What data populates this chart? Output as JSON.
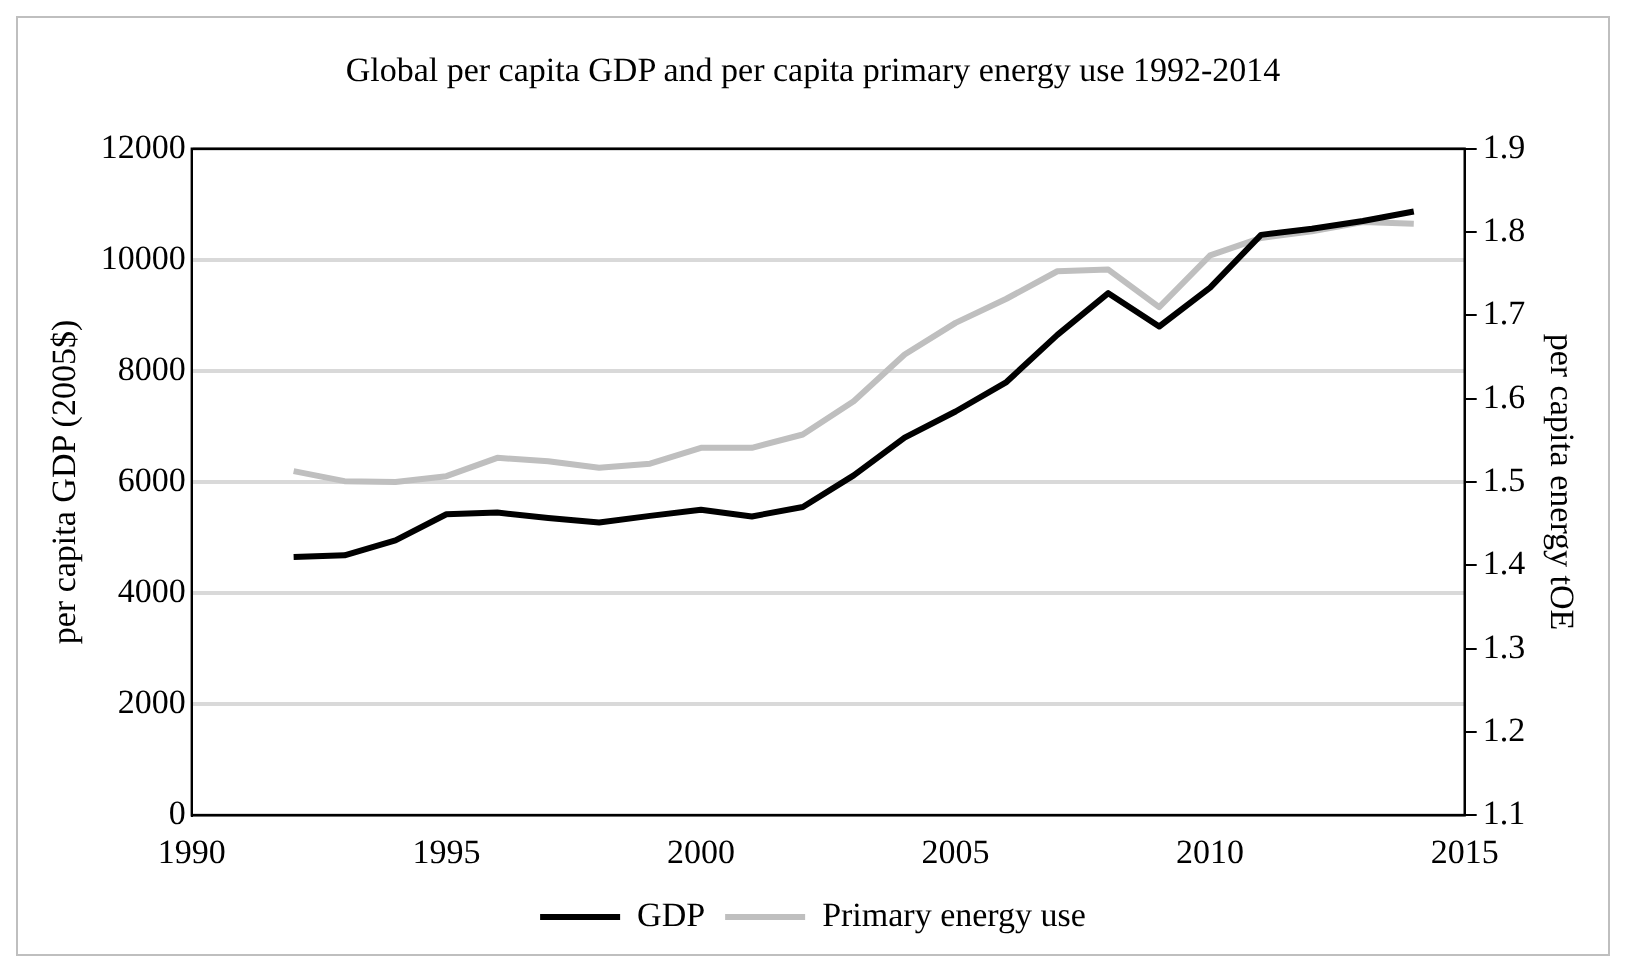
{
  "chart_data": {
    "type": "line",
    "title": "Global per capita GDP and per capita primary energy use 1992-2014",
    "ylabel": "per capita GDP (2005$)",
    "y2label": "per capita energy tOE",
    "x": [
      1992,
      1993,
      1994,
      1995,
      1996,
      1997,
      1998,
      1999,
      2000,
      2001,
      2002,
      2003,
      2004,
      2005,
      2006,
      2007,
      2008,
      2009,
      2010,
      2011,
      2012,
      2013,
      2014
    ],
    "series": [
      {
        "name": "GDP",
        "color": "#000000",
        "values": [
          4650,
          4680,
          4950,
          5420,
          5450,
          5350,
          5270,
          5390,
          5500,
          5380,
          5550,
          6120,
          6800,
          7270,
          7800,
          8650,
          9400,
          8800,
          9500,
          10450,
          10560,
          10700,
          10870
        ]
      },
      {
        "name": "Primary energy use",
        "color": "#bfbfbf",
        "axis": "y2",
        "values": [
          1.513,
          1.501,
          1.5,
          1.507,
          1.529,
          1.525,
          1.517,
          1.522,
          1.541,
          1.541,
          1.557,
          1.597,
          1.653,
          1.691,
          1.72,
          1.753,
          1.755,
          1.71,
          1.772,
          1.793,
          1.801,
          1.812,
          1.81
        ]
      }
    ],
    "xlim": [
      1990,
      2015
    ],
    "xticks": [
      1990,
      1995,
      2000,
      2005,
      2010,
      2015
    ],
    "ylim": [
      0,
      12000
    ],
    "yticks": [
      0,
      2000,
      4000,
      6000,
      8000,
      10000,
      12000
    ],
    "y2lim": [
      1.1,
      1.9
    ],
    "y2ticks": [
      {
        "value": 1.1,
        "label": "1.1"
      },
      1.2,
      1.3,
      1.4,
      1.5,
      1.6,
      1.7,
      1.8,
      1.9
    ],
    "grid": "y",
    "legend": "bottom",
    "marker": "none",
    "line_style": "solid"
  }
}
